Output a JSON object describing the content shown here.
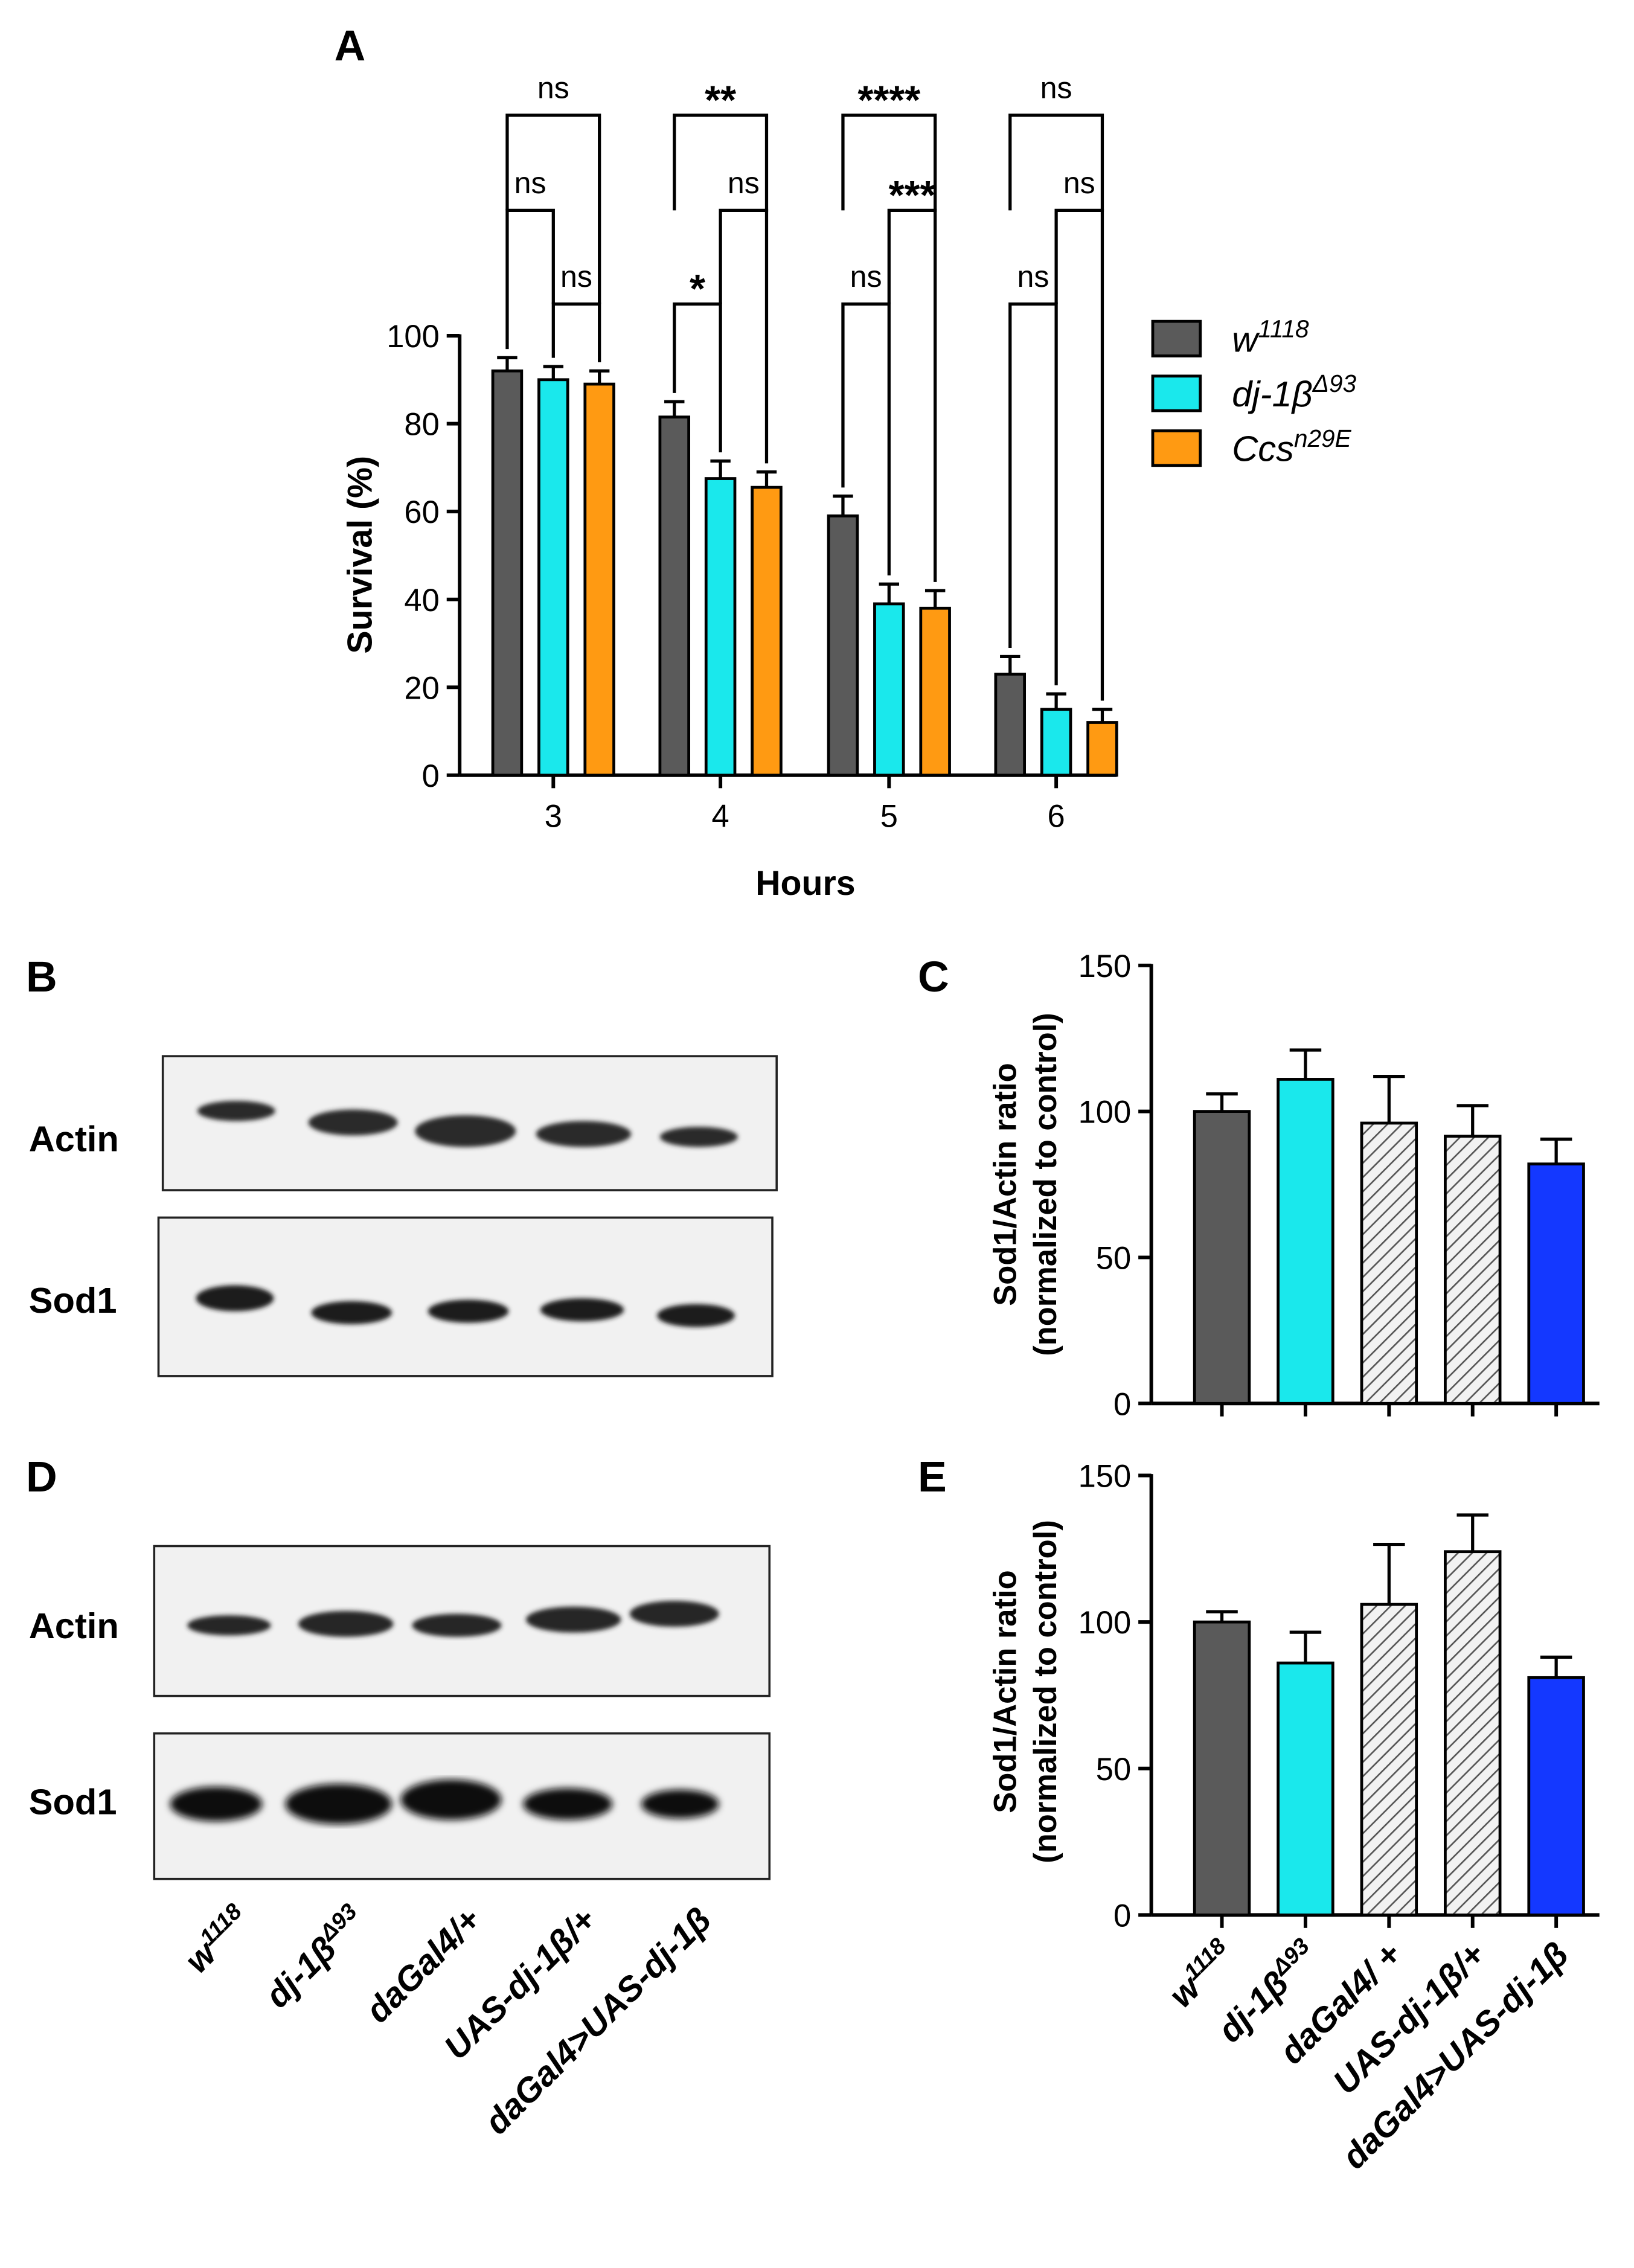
{
  "colors": {
    "w1118": "#5a5a5a",
    "dj": "#1ae8ec",
    "ccs": "#ff9a12",
    "hatch_fill": "#f2f2f2",
    "rescue": "#1438ff",
    "ink": "#000000",
    "blot_bg": "#f1f1f1"
  },
  "panels": {
    "A": {
      "label": "A"
    },
    "B": {
      "label": "B",
      "rows": [
        "Actin",
        "Sod1"
      ]
    },
    "C": {
      "label": "C"
    },
    "D": {
      "label": "D",
      "rows": [
        "Actin",
        "Sod1"
      ]
    },
    "E": {
      "label": "E"
    }
  },
  "genotype_labels": {
    "w_main": "w",
    "w_sup": "1118",
    "dj_main": "dj-1β",
    "dj_sup": "Δ93",
    "dagal4": "daGal4/+",
    "dagal4_e": "daGal4/ +",
    "uas": "UAS-dj-1β/+",
    "rescue": "daGal4>UAS-dj-1β"
  },
  "chart_data": [
    {
      "panel": "A",
      "type": "bar",
      "xlabel": "Hours",
      "ylabel": "Survival (%)",
      "ylim": [
        0,
        100
      ],
      "yticks": [
        "0",
        "20",
        "40",
        "60",
        "80",
        "100"
      ],
      "categories": [
        "3",
        "4",
        "5",
        "6"
      ],
      "legend_position": "right",
      "series": [
        {
          "name_main": "w",
          "name_sup": "1118",
          "values": [
            92,
            81.5,
            59,
            23
          ],
          "errors": [
            3,
            3.5,
            4.5,
            4
          ]
        },
        {
          "name_main": "dj-1β",
          "name_sup": "Δ93",
          "values": [
            90,
            67.5,
            39,
            15
          ],
          "errors": [
            3,
            4,
            4.5,
            3.5
          ]
        },
        {
          "name_main": "Ccs",
          "name_sup": "n29E",
          "values": [
            89,
            65.5,
            38,
            12
          ],
          "errors": [
            3,
            3.5,
            4,
            3
          ]
        }
      ],
      "significance": [
        {
          "hour": "3",
          "top": "ns",
          "mid": "ns",
          "low": "ns"
        },
        {
          "hour": "4",
          "top": "**",
          "mid": "ns",
          "low": "*"
        },
        {
          "hour": "5",
          "top": "****",
          "mid": "***",
          "low": "ns"
        },
        {
          "hour": "6",
          "top": "ns",
          "mid": "ns",
          "low": "ns"
        }
      ]
    },
    {
      "panel": "C",
      "type": "bar",
      "ylabel_line1": "Sod1/Actin ratio",
      "ylabel_line2": "(normalized to control)",
      "ylim": [
        0,
        150
      ],
      "yticks": [
        "0",
        "50",
        "100",
        "150"
      ],
      "values": [
        100,
        111,
        96,
        91.5,
        82
      ],
      "errors": [
        6,
        10,
        16,
        10.5,
        8.5
      ]
    },
    {
      "panel": "E",
      "type": "bar",
      "ylabel_line1": "Sod1/Actin ratio",
      "ylabel_line2": "(normalized to control)",
      "ylim": [
        0,
        150
      ],
      "yticks": [
        "0",
        "50",
        "100",
        "150"
      ],
      "values": [
        100,
        86,
        106,
        124,
        81
      ],
      "errors": [
        3.5,
        10.5,
        20.5,
        12.5,
        7
      ]
    }
  ]
}
